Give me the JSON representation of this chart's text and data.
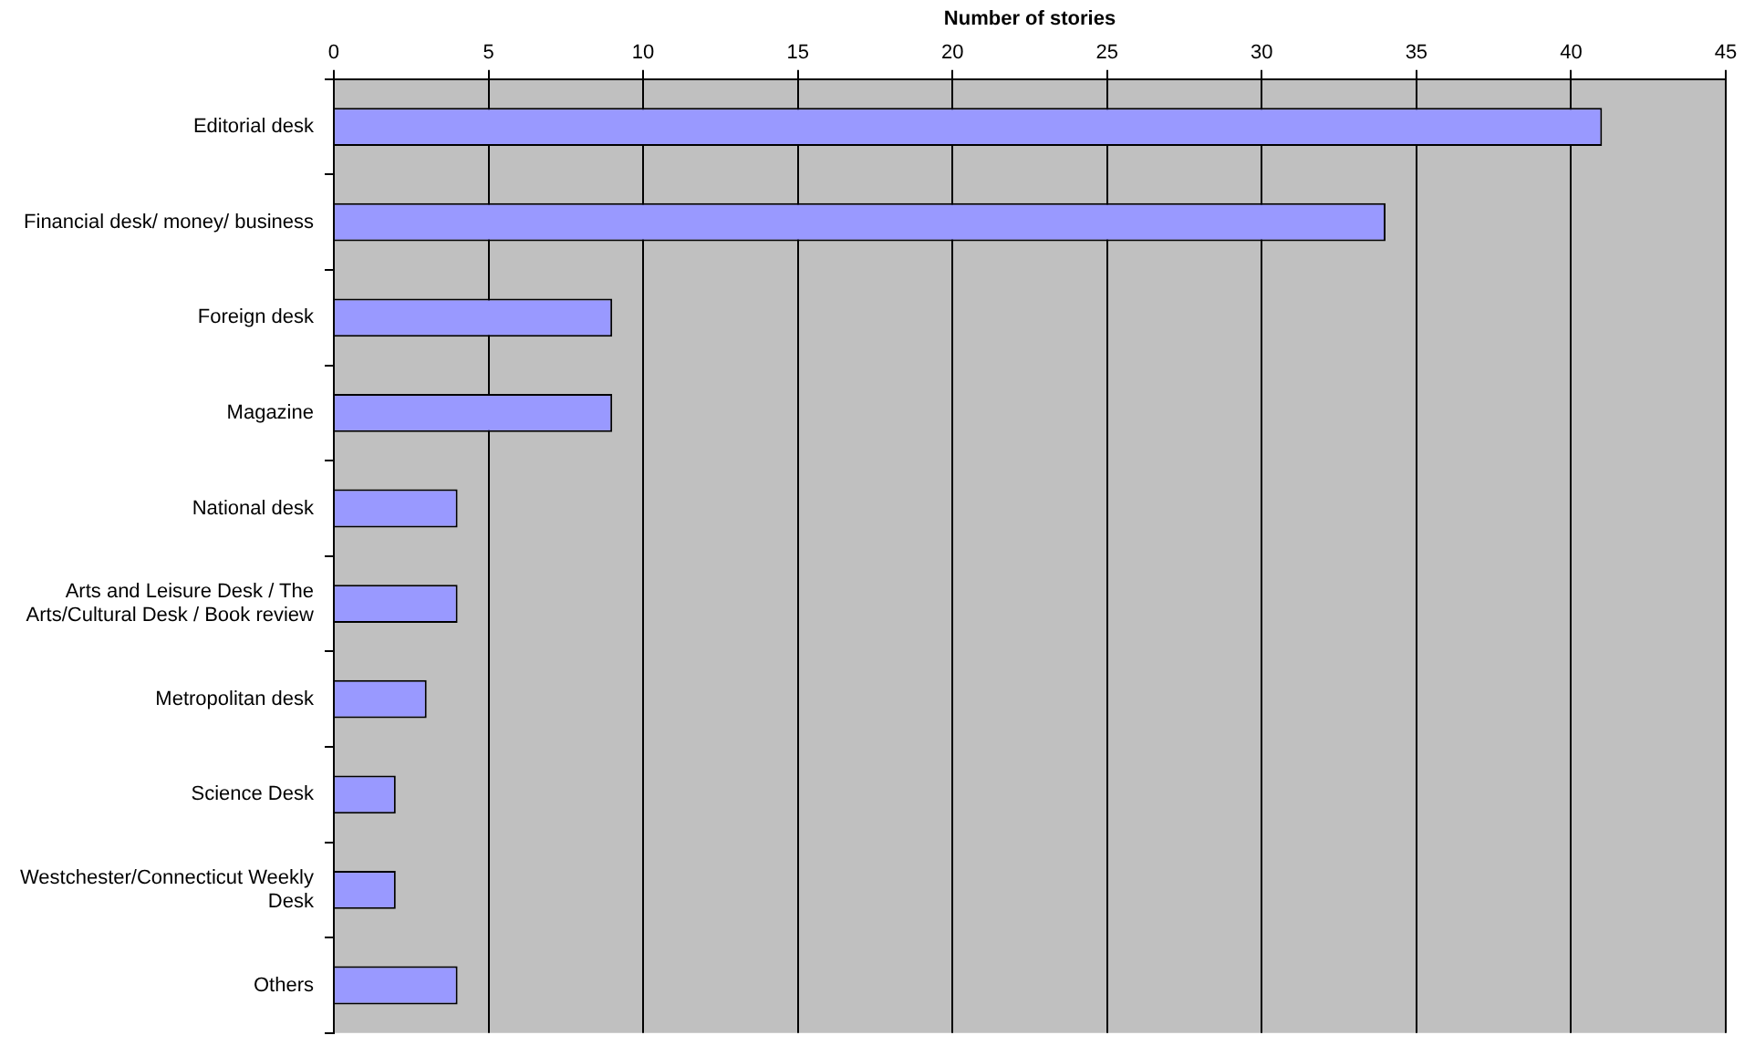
{
  "chart_data": {
    "type": "bar",
    "orientation": "horizontal",
    "xlabel": "Number of stories",
    "categories": [
      "Editorial desk",
      "Financial desk/ money/ business",
      "Foreign desk",
      "Magazine",
      "National desk",
      "Arts and Leisure Desk / The Arts/Cultural Desk / Book review",
      "Metropolitan desk",
      "Science Desk",
      "Westchester/Connecticut Weekly Desk",
      "Others"
    ],
    "values": [
      41,
      34,
      9,
      9,
      4,
      4,
      3,
      2,
      2,
      4
    ],
    "color": "#9999ff",
    "xlim": [
      0,
      45
    ],
    "xticks": [
      0,
      5,
      10,
      15,
      20,
      25,
      30,
      35,
      40,
      45
    ],
    "grid": "x",
    "legend": false
  }
}
